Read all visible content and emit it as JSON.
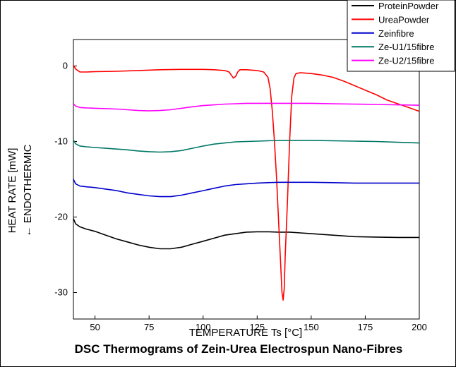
{
  "chart_data": {
    "type": "line",
    "title": "DSC Thermograms of Zein-Urea Electrospun Nano-Fibres",
    "xlabel": "TEMPERATURE Ts [°C]",
    "ylabel_lines": [
      "HEAT RATE [mW]",
      "← ENDOTHERMIC"
    ],
    "xlim": [
      40,
      200
    ],
    "ylim": [
      -33.5,
      3.5
    ],
    "xticks": [
      50,
      75,
      100,
      125,
      150,
      175,
      200
    ],
    "yticks": [
      0,
      -10,
      -20,
      -30
    ],
    "grid": false,
    "legend_position": "top-right",
    "series": [
      {
        "name": "ProteinPowder",
        "color": "#000000",
        "points": [
          [
            40,
            -20.2
          ],
          [
            41,
            -20.9
          ],
          [
            43,
            -21.3
          ],
          [
            46,
            -21.6
          ],
          [
            50,
            -21.9
          ],
          [
            55,
            -22.4
          ],
          [
            60,
            -22.9
          ],
          [
            65,
            -23.3
          ],
          [
            70,
            -23.7
          ],
          [
            75,
            -24.0
          ],
          [
            80,
            -24.2
          ],
          [
            85,
            -24.2
          ],
          [
            90,
            -24.0
          ],
          [
            95,
            -23.6
          ],
          [
            100,
            -23.2
          ],
          [
            105,
            -22.8
          ],
          [
            110,
            -22.4
          ],
          [
            115,
            -22.2
          ],
          [
            120,
            -22.0
          ],
          [
            125,
            -21.95
          ],
          [
            130,
            -21.95
          ],
          [
            135,
            -22.0
          ],
          [
            140,
            -22.0
          ],
          [
            145,
            -22.1
          ],
          [
            150,
            -22.2
          ],
          [
            160,
            -22.4
          ],
          [
            170,
            -22.6
          ],
          [
            180,
            -22.65
          ],
          [
            190,
            -22.7
          ],
          [
            200,
            -22.7
          ]
        ]
      },
      {
        "name": "UreaPowder",
        "color": "#ff0000",
        "points": [
          [
            40,
            0.1
          ],
          [
            41,
            -0.4
          ],
          [
            43,
            -0.8
          ],
          [
            46,
            -0.8
          ],
          [
            50,
            -0.75
          ],
          [
            60,
            -0.7
          ],
          [
            70,
            -0.6
          ],
          [
            80,
            -0.5
          ],
          [
            90,
            -0.45
          ],
          [
            100,
            -0.45
          ],
          [
            105,
            -0.5
          ],
          [
            110,
            -0.6
          ],
          [
            112,
            -0.8
          ],
          [
            113,
            -1.2
          ],
          [
            114,
            -1.6
          ],
          [
            115,
            -1.4
          ],
          [
            116,
            -0.8
          ],
          [
            117,
            -0.5
          ],
          [
            120,
            -0.5
          ],
          [
            125,
            -0.6
          ],
          [
            128,
            -0.8
          ],
          [
            130,
            -1.5
          ],
          [
            131,
            -3.0
          ],
          [
            132,
            -6.0
          ],
          [
            133,
            -10.0
          ],
          [
            134,
            -15.0
          ],
          [
            135,
            -21.0
          ],
          [
            136,
            -27.0
          ],
          [
            136.5,
            -30.0
          ],
          [
            137,
            -31.0
          ],
          [
            137.5,
            -29.5
          ],
          [
            138,
            -25.0
          ],
          [
            139,
            -18.0
          ],
          [
            140,
            -10.0
          ],
          [
            141,
            -4.0
          ],
          [
            142,
            -1.6
          ],
          [
            143,
            -1.0
          ],
          [
            145,
            -0.9
          ],
          [
            150,
            -1.0
          ],
          [
            155,
            -1.2
          ],
          [
            160,
            -1.5
          ],
          [
            165,
            -2.0
          ],
          [
            170,
            -2.6
          ],
          [
            175,
            -3.2
          ],
          [
            180,
            -3.8
          ],
          [
            185,
            -4.5
          ],
          [
            190,
            -5.0
          ],
          [
            195,
            -5.5
          ],
          [
            200,
            -6.0
          ]
        ]
      },
      {
        "name": "Zeinfibre",
        "color": "#0000cc",
        "points": [
          [
            40,
            -15.0
          ],
          [
            41,
            -15.6
          ],
          [
            43,
            -15.9
          ],
          [
            46,
            -16.0
          ],
          [
            50,
            -16.1
          ],
          [
            55,
            -16.3
          ],
          [
            60,
            -16.5
          ],
          [
            65,
            -16.8
          ],
          [
            70,
            -17.0
          ],
          [
            75,
            -17.2
          ],
          [
            80,
            -17.3
          ],
          [
            85,
            -17.3
          ],
          [
            90,
            -17.1
          ],
          [
            95,
            -16.8
          ],
          [
            100,
            -16.5
          ],
          [
            105,
            -16.2
          ],
          [
            110,
            -15.9
          ],
          [
            115,
            -15.7
          ],
          [
            120,
            -15.6
          ],
          [
            125,
            -15.5
          ],
          [
            130,
            -15.45
          ],
          [
            135,
            -15.4
          ],
          [
            140,
            -15.4
          ],
          [
            150,
            -15.4
          ],
          [
            160,
            -15.45
          ],
          [
            170,
            -15.5
          ],
          [
            180,
            -15.5
          ],
          [
            190,
            -15.5
          ],
          [
            200,
            -15.5
          ]
        ]
      },
      {
        "name": "Ze-U1/15fibre",
        "color": "#007766",
        "points": [
          [
            40,
            -9.8
          ],
          [
            41,
            -10.3
          ],
          [
            43,
            -10.6
          ],
          [
            46,
            -10.7
          ],
          [
            50,
            -10.8
          ],
          [
            55,
            -10.9
          ],
          [
            60,
            -11.0
          ],
          [
            65,
            -11.1
          ],
          [
            70,
            -11.25
          ],
          [
            75,
            -11.35
          ],
          [
            80,
            -11.4
          ],
          [
            85,
            -11.35
          ],
          [
            90,
            -11.2
          ],
          [
            95,
            -10.9
          ],
          [
            100,
            -10.6
          ],
          [
            105,
            -10.35
          ],
          [
            110,
            -10.2
          ],
          [
            115,
            -10.05
          ],
          [
            120,
            -10.0
          ],
          [
            125,
            -9.95
          ],
          [
            130,
            -9.9
          ],
          [
            140,
            -9.85
          ],
          [
            150,
            -9.85
          ],
          [
            160,
            -9.9
          ],
          [
            170,
            -9.95
          ],
          [
            180,
            -10.0
          ],
          [
            190,
            -10.1
          ],
          [
            200,
            -10.2
          ]
        ]
      },
      {
        "name": "Ze-U2/15fibre",
        "color": "#ff00ff",
        "points": [
          [
            40,
            -5.0
          ],
          [
            41,
            -5.3
          ],
          [
            43,
            -5.5
          ],
          [
            46,
            -5.55
          ],
          [
            50,
            -5.6
          ],
          [
            55,
            -5.65
          ],
          [
            60,
            -5.7
          ],
          [
            65,
            -5.8
          ],
          [
            70,
            -5.9
          ],
          [
            75,
            -5.95
          ],
          [
            80,
            -5.9
          ],
          [
            85,
            -5.8
          ],
          [
            90,
            -5.6
          ],
          [
            95,
            -5.4
          ],
          [
            100,
            -5.25
          ],
          [
            105,
            -5.15
          ],
          [
            110,
            -5.05
          ],
          [
            115,
            -5.0
          ],
          [
            120,
            -4.95
          ],
          [
            130,
            -4.95
          ],
          [
            140,
            -4.95
          ],
          [
            150,
            -4.95
          ],
          [
            160,
            -5.0
          ],
          [
            170,
            -5.05
          ],
          [
            180,
            -5.1
          ],
          [
            190,
            -5.15
          ],
          [
            200,
            -5.2
          ]
        ]
      }
    ]
  }
}
